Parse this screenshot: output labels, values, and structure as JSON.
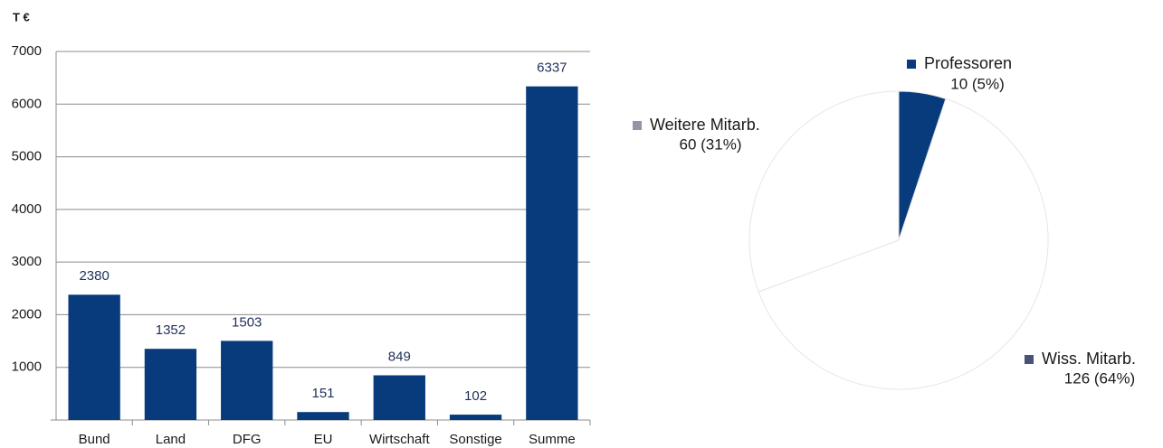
{
  "chart_data": [
    {
      "type": "bar",
      "y_label": "T €",
      "categories": [
        "Bund",
        "Land",
        "DFG",
        "EU",
        "Wirtschaft",
        "Sonstige",
        "Summe"
      ],
      "values": [
        2380,
        1352,
        1503,
        151,
        849,
        102,
        6337
      ],
      "color": "#073b7c",
      "ylim": [
        0,
        7000
      ],
      "yticks": [
        1000,
        2000,
        3000,
        4000,
        5000,
        6000,
        7000
      ],
      "grid": true
    },
    {
      "type": "pie",
      "categories": [
        "Professoren",
        "Wiss. Mitarb.",
        "Weitere Mitarb."
      ],
      "values": [
        10,
        126,
        60
      ],
      "value_labels": [
        "10 (5%)",
        "126 (64%)",
        "60 (31%)"
      ],
      "colors": [
        "#073b7c",
        "#ffffff",
        "#ffffff"
      ],
      "legend_colors": [
        "#073b7c",
        "#4b5277",
        "#9494a8"
      ]
    }
  ]
}
